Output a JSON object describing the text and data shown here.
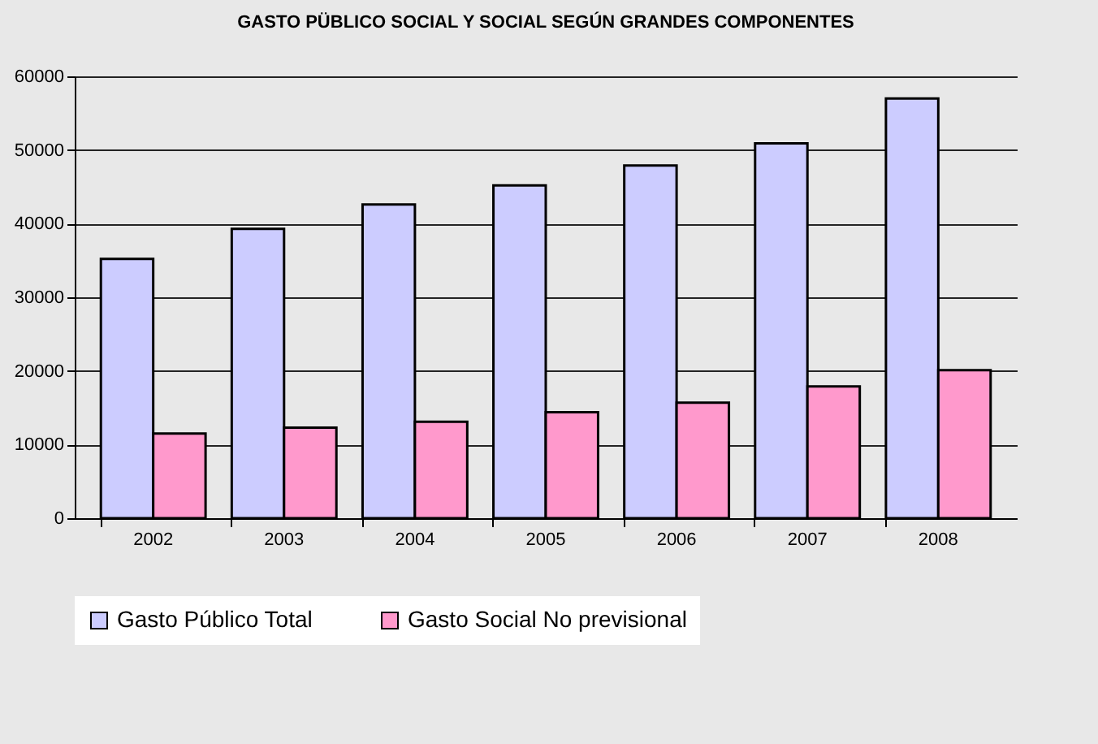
{
  "chart_data": {
    "type": "bar",
    "title": "GASTO PÜBLICO SOCIAL Y SOCIAL SEGÚN GRANDES COMPONENTES",
    "categories": [
      "2002",
      "2003",
      "2004",
      "2005",
      "2006",
      "2007",
      "2008"
    ],
    "series": [
      {
        "name": "Gasto Público Total",
        "color": "#ccccff",
        "values": [
          35200,
          39300,
          42600,
          45200,
          47900,
          50900,
          57000
        ]
      },
      {
        "name": "Gasto Social No previsional",
        "color": "#ff99cc",
        "values": [
          11500,
          12300,
          13100,
          14400,
          15700,
          17900,
          20100
        ]
      }
    ],
    "ylim": [
      0,
      60000
    ],
    "yticks": [
      0,
      10000,
      20000,
      30000,
      40000,
      50000,
      60000
    ],
    "grid": "y",
    "legend": "bottom"
  }
}
